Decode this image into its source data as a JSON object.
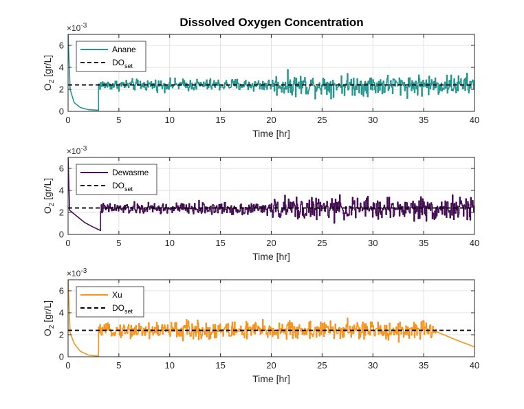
{
  "chart_data": [
    {
      "type": "line",
      "title": "Dissolved Oxygen Concentration",
      "xlabel": "Time [hr]",
      "ylabel": "O",
      "ylabel_sub": "2",
      "ylabel_unit": " [gr/L]",
      "y_exponent": "×10",
      "y_exponent_power": "-3",
      "xlim": [
        0,
        40
      ],
      "ylim": [
        0,
        7
      ],
      "xticks": [
        "0",
        "5",
        "10",
        "15",
        "20",
        "25",
        "30",
        "35",
        "40"
      ],
      "yticks": [
        "0",
        "2",
        "4",
        "6"
      ],
      "grid": true,
      "legend_position": "top-left",
      "series": [
        {
          "name": "Anane",
          "color": "#22968f",
          "profile": [
            [
              0,
              7.0
            ],
            [
              0.2,
              2.0
            ],
            [
              0.6,
              0.8
            ],
            [
              1.2,
              0.35
            ],
            [
              2.0,
              0.15
            ],
            [
              3.0,
              0.1
            ]
          ],
          "noise_start": 3.0,
          "noise_end": 40,
          "noise_level": 2.4,
          "noise_amplitude": [
            [
              3,
              0.45
            ],
            [
              20,
              0.55
            ],
            [
              20.5,
              0.9
            ],
            [
              40,
              0.85
            ]
          ]
        },
        {
          "name": "DO",
          "name_sub": "set",
          "color": "#000000",
          "style": "dashed",
          "values": [
            [
              0,
              2.4
            ],
            [
              40,
              2.4
            ]
          ]
        }
      ]
    },
    {
      "type": "line",
      "xlabel": "Time [hr]",
      "ylabel": "O",
      "ylabel_sub": "2",
      "ylabel_unit": " [gr/L]",
      "y_exponent": "×10",
      "y_exponent_power": "-3",
      "xlim": [
        0,
        40
      ],
      "ylim": [
        0,
        7
      ],
      "xticks": [
        "0",
        "5",
        "10",
        "15",
        "20",
        "25",
        "30",
        "35",
        "40"
      ],
      "yticks": [
        "0",
        "2",
        "4",
        "6"
      ],
      "grid": true,
      "legend_position": "top-left",
      "series": [
        {
          "name": "Dewasme",
          "color": "#440d54",
          "profile": [
            [
              0,
              7.0
            ],
            [
              0.15,
              2.2
            ],
            [
              0.8,
              1.7
            ],
            [
              1.6,
              1.1
            ],
            [
              2.4,
              0.7
            ],
            [
              3.2,
              0.35
            ]
          ],
          "noise_start": 3.2,
          "noise_end": 40,
          "noise_level": 2.35,
          "noise_amplitude": [
            [
              3.2,
              0.45
            ],
            [
              20,
              0.55
            ],
            [
              20.5,
              0.95
            ],
            [
              40,
              0.95
            ]
          ]
        },
        {
          "name": "DO",
          "name_sub": "set",
          "color": "#000000",
          "style": "dashed",
          "values": [
            [
              0,
              2.4
            ],
            [
              40,
              2.4
            ]
          ]
        }
      ]
    },
    {
      "type": "line",
      "xlabel": "Time [hr]",
      "ylabel": "O",
      "ylabel_sub": "2",
      "ylabel_unit": " [gr/L]",
      "y_exponent": "×10",
      "y_exponent_power": "-3",
      "xlim": [
        0,
        40
      ],
      "ylim": [
        0,
        7
      ],
      "xticks": [
        "0",
        "5",
        "10",
        "15",
        "20",
        "25",
        "30",
        "35",
        "40"
      ],
      "yticks": [
        "0",
        "2",
        "4",
        "6"
      ],
      "grid": true,
      "legend_position": "top-left",
      "series": [
        {
          "name": "Xu",
          "color": "#f7941d",
          "profile": [
            [
              0,
              7.0
            ],
            [
              0.2,
              2.2
            ],
            [
              0.6,
              1.2
            ],
            [
              1.2,
              0.5
            ],
            [
              2.0,
              0.15
            ],
            [
              3.0,
              0.05
            ]
          ],
          "noise_start": 3.0,
          "noise_end": 36.2,
          "noise_level": 2.4,
          "noise_amplitude": [
            [
              3,
              0.4
            ],
            [
              8,
              0.8
            ],
            [
              36.2,
              0.8
            ]
          ],
          "tail": [
            [
              36.2,
              2.3
            ],
            [
              38,
              1.6
            ],
            [
              40,
              0.9
            ]
          ]
        },
        {
          "name": "DO",
          "name_sub": "set",
          "color": "#000000",
          "style": "dashed",
          "values": [
            [
              0,
              2.4
            ],
            [
              40,
              2.4
            ]
          ]
        }
      ]
    }
  ]
}
